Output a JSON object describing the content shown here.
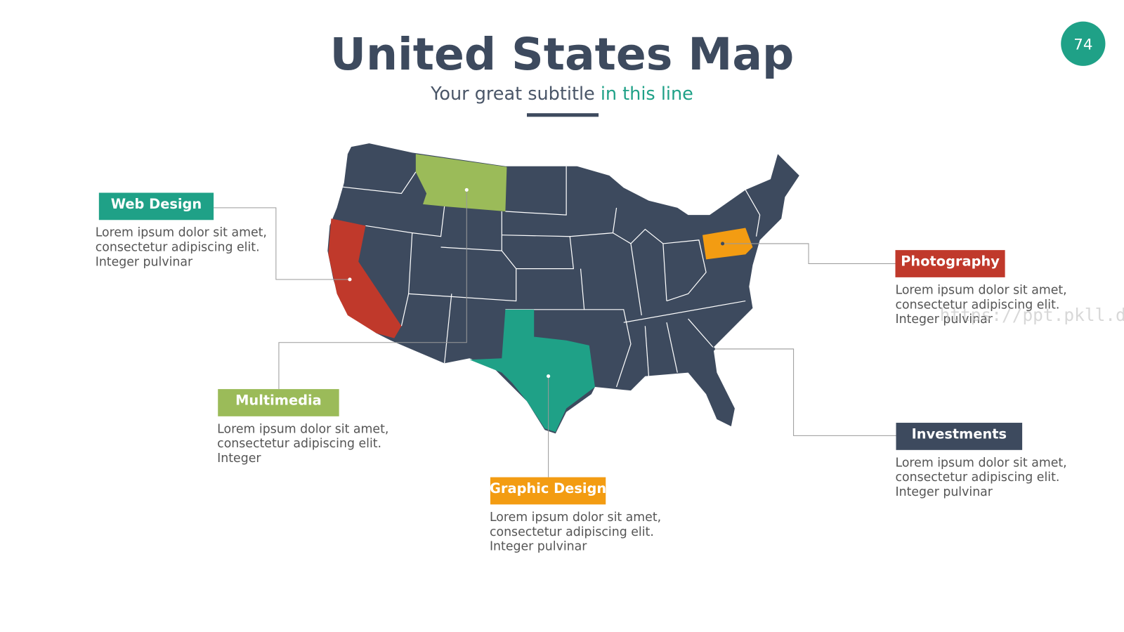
{
  "header": {
    "title": "United States Map",
    "subtitle": {
      "lead": "Your great subtitle",
      "highlight": "in this line"
    },
    "page_number": "74"
  },
  "callouts": [
    {
      "label": "Web Design",
      "lines": [
        "Lorem ipsum dolor sit amet,",
        "consectetur adipiscing elit.",
        "Integer pulvinar"
      ]
    },
    {
      "label": "Multimedia",
      "lines": [
        "Lorem ipsum dolor sit amet,",
        "consectetur adipiscing elit.",
        "Integer"
      ]
    },
    {
      "label": "Graphic Design",
      "lines": [
        "Lorem ipsum dolor sit amet,",
        "consectetur adipiscing elit.",
        "Integer pulvinar"
      ]
    },
    {
      "label": "Photography",
      "lines": [
        "Lorem ipsum dolor sit amet,",
        "consectetur adipiscing elit.",
        "Integer pulvinar"
      ]
    },
    {
      "label": "Investments",
      "lines": [
        "Lorem ipsum dolor sit amet,",
        "consectetur adipiscing elit.",
        "Integer pulvinar"
      ]
    }
  ],
  "watermark": "https://ppt.pkll.de"
}
